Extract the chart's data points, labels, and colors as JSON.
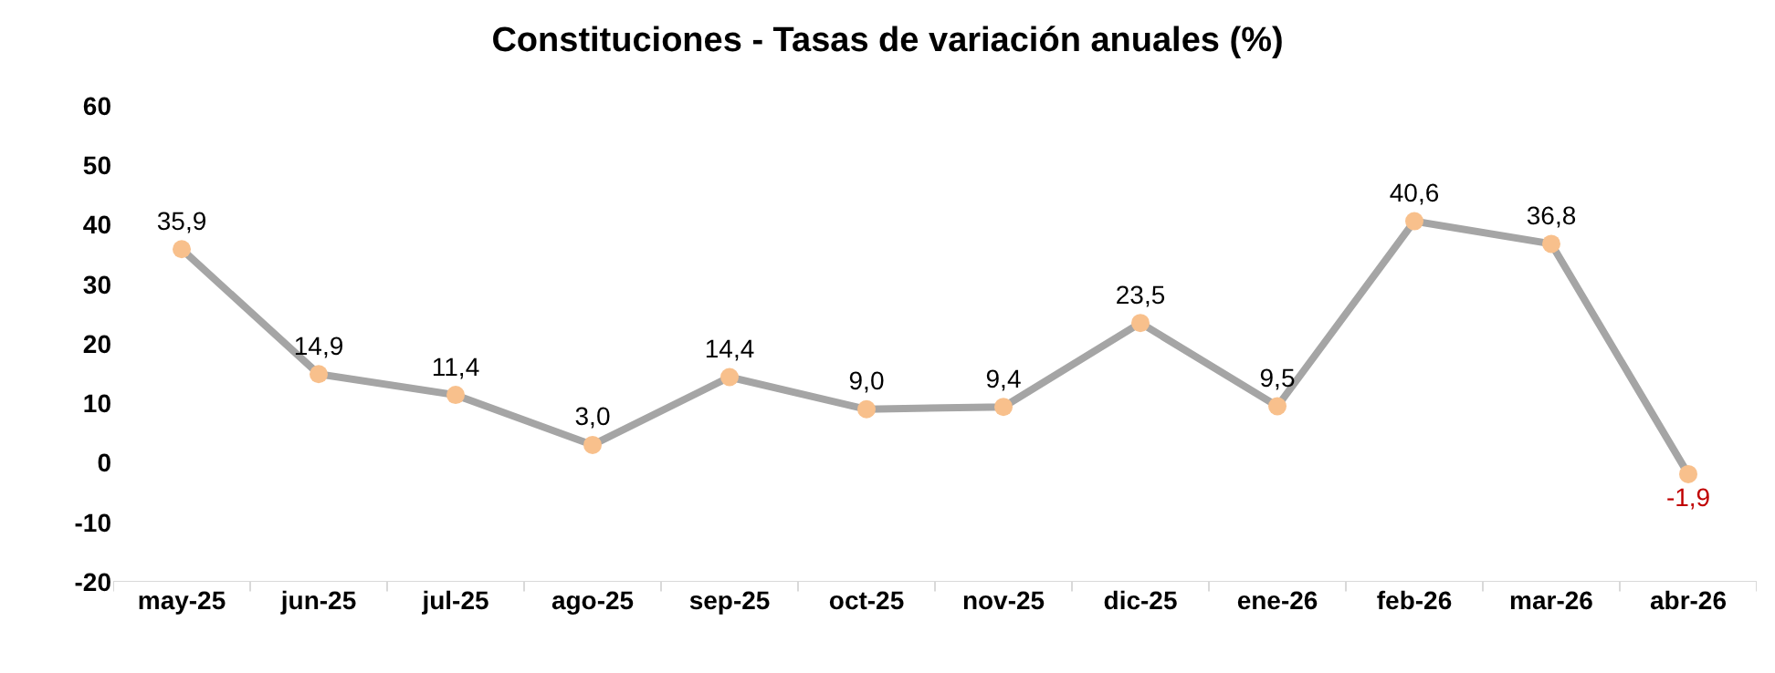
{
  "chart_data": {
    "type": "line",
    "title": "Constituciones - Tasas de variación anuales (%)",
    "categories": [
      "may-25",
      "jun-25",
      "jul-25",
      "ago-25",
      "sep-25",
      "oct-25",
      "nov-25",
      "dic-25",
      "ene-26",
      "feb-26",
      "mar-26",
      "abr-26"
    ],
    "values": [
      35.9,
      14.9,
      11.4,
      3.0,
      14.4,
      9.0,
      9.4,
      23.5,
      9.5,
      40.6,
      36.8,
      -1.9
    ],
    "value_labels": [
      "35,9",
      "14,9",
      "11,4",
      "3,0",
      "14,4",
      "9,0",
      "9,4",
      "23,5",
      "9,5",
      "40,6",
      "36,8",
      "-1,9"
    ],
    "color": "#a5a5a5",
    "colors": [
      "#f8c08c",
      "#f8c08c",
      "#f8c08c",
      "#f8c08c",
      "#f8c08c",
      "#f8c08c",
      "#f8c08c",
      "#f8c08c",
      "#f8c08c",
      "#f8c08c",
      "#f8c08c",
      "#f8c08c"
    ],
    "marker": "circle",
    "line_style": "solid",
    "grid": false,
    "legend": false,
    "ylim": [
      -20,
      60
    ],
    "yticks": [
      -20,
      -10,
      0,
      10,
      20,
      30,
      40,
      50,
      60
    ]
  }
}
